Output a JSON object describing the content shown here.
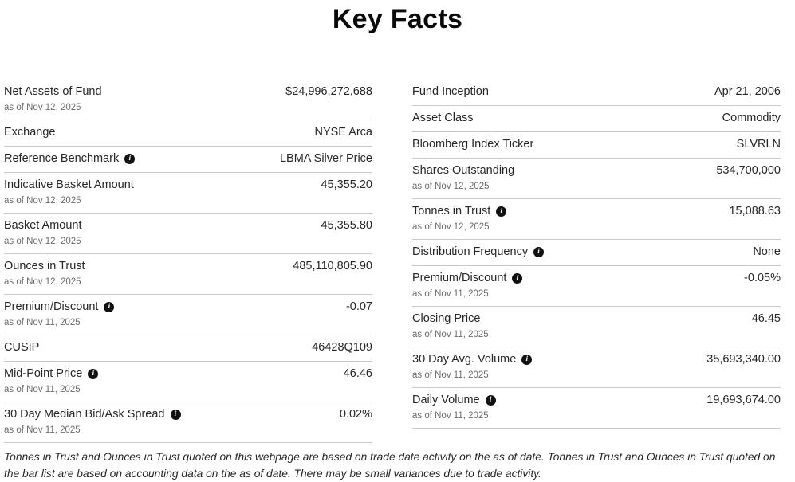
{
  "page": {
    "title": "Key Facts"
  },
  "icons": {
    "info_glyph": "i"
  },
  "colors": {
    "text": "#262626",
    "muted": "#6b6b6b",
    "divider": "#c9c9c9",
    "info_icon_bg": "#111111"
  },
  "columns": {
    "left": [
      {
        "label": "Net Assets of Fund",
        "as_of": "as of Nov 12, 2025",
        "value": "$24,996,272,688",
        "info": false
      },
      {
        "label": "Exchange",
        "value": "NYSE Arca",
        "info": false
      },
      {
        "label": "Reference Benchmark",
        "value": "LBMA Silver Price",
        "info": true
      },
      {
        "label": "Indicative Basket Amount",
        "as_of": "as of Nov 12, 2025",
        "value": "45,355.20",
        "info": false
      },
      {
        "label": "Basket Amount",
        "as_of": "as of Nov 12, 2025",
        "value": "45,355.80",
        "info": false
      },
      {
        "label": "Ounces in Trust",
        "as_of": "as of Nov 12, 2025",
        "value": "485,110,805.90",
        "info": false
      },
      {
        "label": "Premium/Discount",
        "as_of": "as of Nov 11, 2025",
        "value": "-0.07",
        "info": true
      },
      {
        "label": "CUSIP",
        "value": "46428Q109",
        "info": false
      },
      {
        "label": "Mid-Point Price",
        "as_of": "as of Nov 11, 2025",
        "value": "46.46",
        "info": true
      },
      {
        "label": "30 Day Median Bid/Ask Spread",
        "as_of": "as of Nov 11, 2025",
        "value": "0.02%",
        "info": true
      }
    ],
    "right": [
      {
        "label": "Fund Inception",
        "value": "Apr 21, 2006",
        "info": false
      },
      {
        "label": "Asset Class",
        "value": "Commodity",
        "info": false
      },
      {
        "label": "Bloomberg Index Ticker",
        "value": "SLVRLN",
        "info": false
      },
      {
        "label": "Shares Outstanding",
        "as_of": "as of Nov 12, 2025",
        "value": "534,700,000",
        "info": false
      },
      {
        "label": "Tonnes in Trust",
        "as_of": "as of Nov 12, 2025",
        "value": "15,088.63",
        "info": true
      },
      {
        "label": "Distribution Frequency",
        "value": "None",
        "info": true
      },
      {
        "label": "Premium/Discount",
        "as_of": "as of Nov 11, 2025",
        "value": "-0.05%",
        "info": true
      },
      {
        "label": "Closing Price",
        "as_of": "as of Nov 11, 2025",
        "value": "46.45",
        "info": false
      },
      {
        "label": "30 Day Avg. Volume",
        "as_of": "as of Nov 11, 2025",
        "value": "35,693,340.00",
        "info": true
      },
      {
        "label": "Daily Volume",
        "as_of": "as of Nov 11, 2025",
        "value": "19,693,674.00",
        "info": true
      }
    ]
  },
  "footnote": "Tonnes in Trust and Ounces in Trust quoted on this webpage are based on trade date activity on the as of date. Tonnes in Trust and Ounces in Trust quoted on the bar list are based on accounting data on the as of date. There may be small variances due to trade activity."
}
